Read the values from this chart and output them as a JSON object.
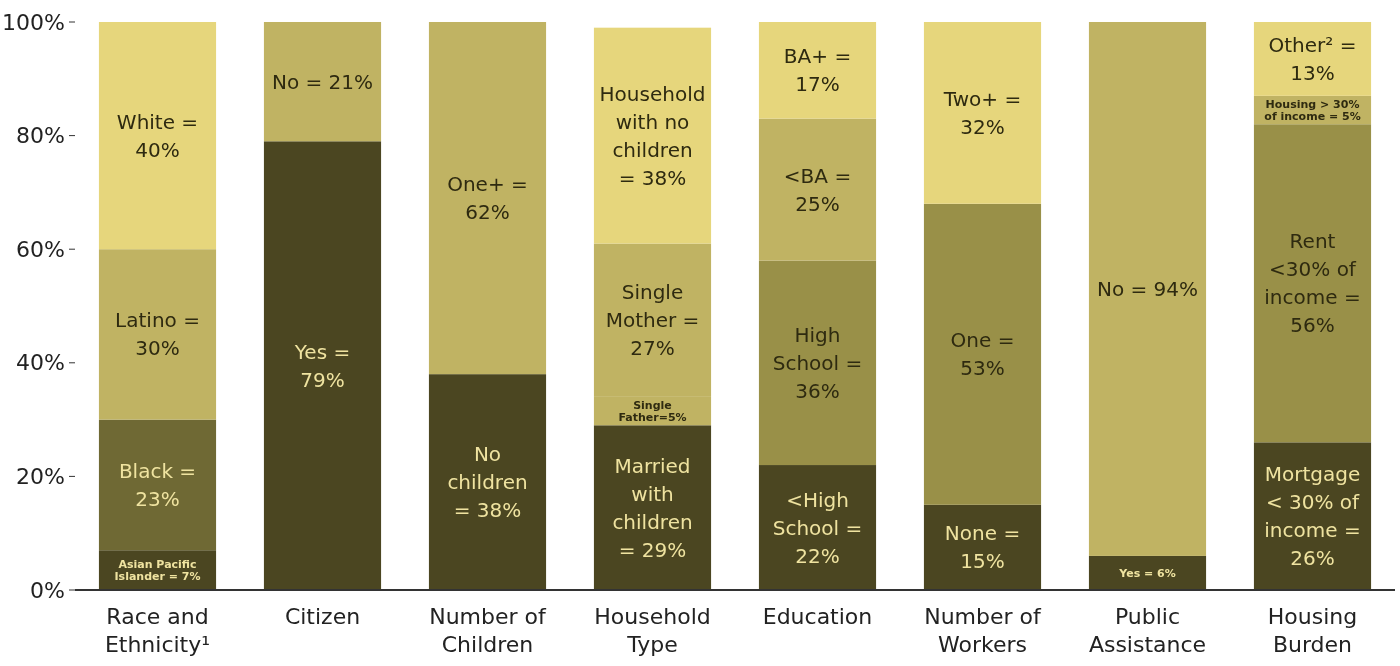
{
  "chart_data": {
    "type": "bar",
    "stacked": true,
    "categories": [
      "Race and Ethnicity¹",
      "Citizen",
      "Number of Children",
      "Household Type",
      "Education",
      "Number of Workers",
      "Public Assistance",
      "Housing Burden"
    ],
    "ylim": [
      0,
      100
    ],
    "yticks": [
      {
        "value": 0,
        "label": "0%"
      },
      {
        "value": 20,
        "label": "20%"
      },
      {
        "value": 40,
        "label": "40%"
      },
      {
        "value": 60,
        "label": "60%"
      },
      {
        "value": 80,
        "label": "80%"
      },
      {
        "value": 100,
        "label": "100%"
      }
    ],
    "grid": false,
    "series": [
      {
        "values": [
          7,
          79,
          38,
          29,
          22,
          15,
          6,
          26
        ],
        "colors": [
          "#4b4621",
          "#4b4621",
          "#4b4621",
          "#4b4621",
          "#4b4621",
          "#4b4621",
          "#4b4621",
          "#4b4621"
        ],
        "value_labels": [
          "Asian Pacific Islander = 7%",
          "Yes = 79%",
          "No children = 38%",
          "Married with children = 29%",
          "<High School = 22%",
          "None = 15%",
          "Yes = 6%",
          "Mortgage < 30% of income = 26%"
        ]
      },
      {
        "values": [
          23,
          21,
          62,
          5,
          36,
          53,
          94,
          56
        ],
        "colors": [
          "#6f6934",
          "#c0b363",
          "#c0b363",
          "#c0b363",
          "#999048",
          "#999048",
          "#c0b363",
          "#999048"
        ],
        "value_labels": [
          "Black = 23%",
          "No = 21%",
          "One+ = 62%",
          "Single Father=5%",
          "High School = 36%",
          "One = 53%",
          "No = 94%",
          "Rent <30% of income = 56%"
        ]
      },
      {
        "values": [
          30,
          null,
          null,
          27,
          25,
          32,
          null,
          5
        ],
        "colors": [
          "#c0b363",
          null,
          null,
          "#c0b363",
          "#c0b363",
          "#e6d67c",
          null,
          "#c0b363"
        ],
        "value_labels": [
          "Latino = 30%",
          null,
          null,
          "Single Mother = 27%",
          "<BA = 25%",
          "Two+ = 32%",
          null,
          "Housing > 30% of income = 5%"
        ]
      },
      {
        "values": [
          40,
          null,
          null,
          38,
          17,
          null,
          null,
          13
        ],
        "colors": [
          "#e6d67c",
          null,
          null,
          "#e6d67c",
          "#e6d67c",
          null,
          null,
          "#e6d67c"
        ],
        "value_labels": [
          "White = 40%",
          null,
          null,
          "Household with no children = 38%",
          "BA+ = 17%",
          null,
          null,
          "Other² = 13%"
        ]
      }
    ]
  }
}
